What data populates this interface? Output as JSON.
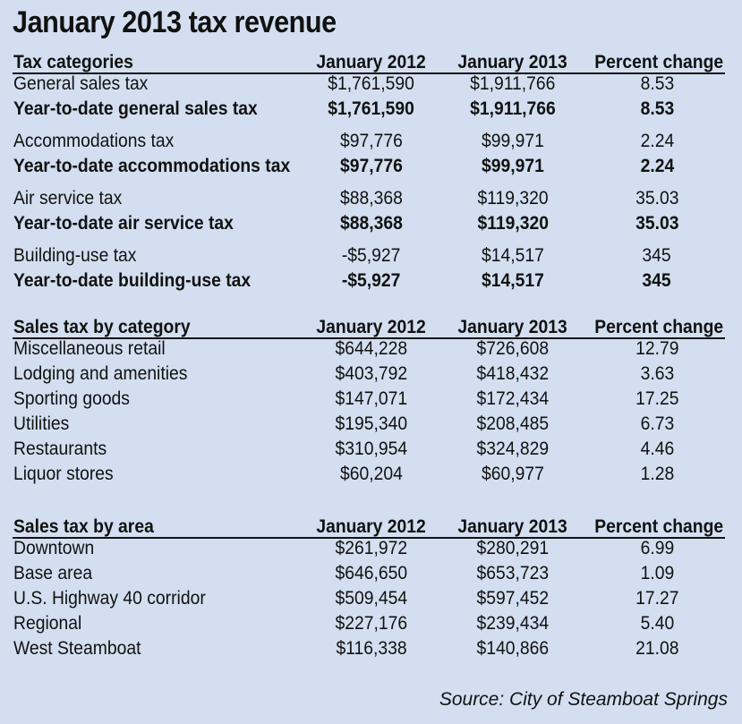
{
  "title": "January 2013 tax revenue",
  "source": "Source: City of Steamboat Springs",
  "chart_data": [
    {
      "type": "table",
      "columns": [
        "Tax categories",
        "January 2012",
        "January 2013",
        "Percent change"
      ],
      "rows": [
        {
          "label": "General sales tax",
          "jan2012": "$1,761,590",
          "jan2013": "$1,911,766",
          "pct": "8.53",
          "bold": false
        },
        {
          "label": "Year-to-date general sales tax",
          "jan2012": "$1,761,590",
          "jan2013": "$1,911,766",
          "pct": "8.53",
          "bold": true
        },
        {
          "label": "Accommodations tax",
          "jan2012": "$97,776",
          "jan2013": "$99,971",
          "pct": "2.24",
          "bold": false
        },
        {
          "label": "Year-to-date accommodations tax",
          "jan2012": "$97,776",
          "jan2013": "$99,971",
          "pct": "2.24",
          "bold": true
        },
        {
          "label": "Air service tax",
          "jan2012": "$88,368",
          "jan2013": "$119,320",
          "pct": "35.03",
          "bold": false
        },
        {
          "label": "Year-to-date air service tax",
          "jan2012": "$88,368",
          "jan2013": "$119,320",
          "pct": "35.03",
          "bold": true
        },
        {
          "label": "Building-use tax",
          "jan2012": "-$5,927",
          "jan2013": "$14,517",
          "pct": "345",
          "bold": false
        },
        {
          "label": "Year-to-date building-use tax",
          "jan2012": "-$5,927",
          "jan2013": "$14,517",
          "pct": "345",
          "bold": true
        }
      ]
    },
    {
      "type": "table",
      "columns": [
        "Sales tax by category",
        "January 2012",
        "January 2013",
        "Percent change"
      ],
      "rows": [
        {
          "label": "Miscellaneous retail",
          "jan2012": "$644,228",
          "jan2013": "$726,608",
          "pct": "12.79"
        },
        {
          "label": "Lodging and amenities",
          "jan2012": "$403,792",
          "jan2013": "$418,432",
          "pct": "3.63"
        },
        {
          "label": "Sporting goods",
          "jan2012": "$147,071",
          "jan2013": "$172,434",
          "pct": "17.25"
        },
        {
          "label": "Utilities",
          "jan2012": "$195,340",
          "jan2013": "$208,485",
          "pct": "6.73"
        },
        {
          "label": "Restaurants",
          "jan2012": "$310,954",
          "jan2013": "$324,829",
          "pct": "4.46"
        },
        {
          "label": "Liquor stores",
          "jan2012": "$60,204",
          "jan2013": "$60,977",
          "pct": "1.28"
        }
      ]
    },
    {
      "type": "table",
      "columns": [
        "Sales tax by area",
        "January 2012",
        "January 2013",
        "Percent change"
      ],
      "rows": [
        {
          "label": "Downtown",
          "jan2012": "$261,972",
          "jan2013": "$280,291",
          "pct": "6.99"
        },
        {
          "label": "Base area",
          "jan2012": "$646,650",
          "jan2013": "$653,723",
          "pct": "1.09"
        },
        {
          "label": "U.S. Highway 40 corridor",
          "jan2012": "$509,454",
          "jan2013": "$597,452",
          "pct": "17.27"
        },
        {
          "label": "Regional",
          "jan2012": "$227,176",
          "jan2013": "$239,434",
          "pct": "5.40"
        },
        {
          "label": "West Steamboat",
          "jan2012": "$116,338",
          "jan2013": "$140,866",
          "pct": "21.08"
        }
      ]
    }
  ]
}
